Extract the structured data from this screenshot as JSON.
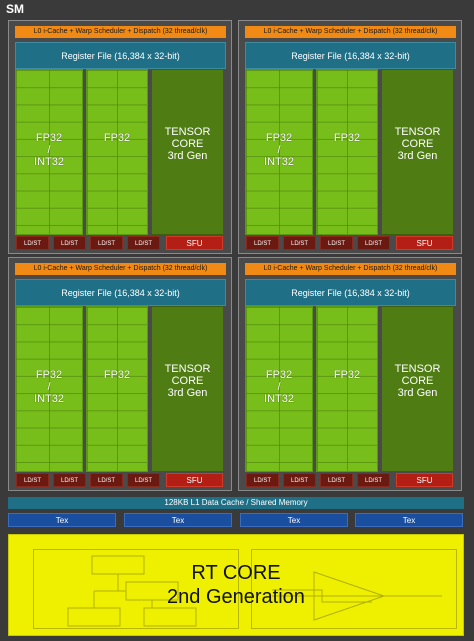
{
  "sm_label": "SM",
  "processing_blocks": [
    {
      "header": "L0 i-Cache + Warp Scheduler + Dispatch (32 thread/clk)",
      "register_file": "Register File (16,384 x 32-bit)",
      "fp32_int32": [
        "FP32",
        "/",
        "INT32"
      ],
      "fp32": "FP32",
      "tensor": [
        "TENSOR",
        "CORE",
        "3rd Gen"
      ],
      "ldst": [
        "LD/ST",
        "LD/ST",
        "LD/ST",
        "LD/ST"
      ],
      "sfu": "SFU"
    },
    {
      "header": "L0 i-Cache + Warp Scheduler + Dispatch (32 thread/clk)",
      "register_file": "Register File (16,384 x 32-bit)",
      "fp32_int32": [
        "FP32",
        "/",
        "INT32"
      ],
      "fp32": "FP32",
      "tensor": [
        "TENSOR",
        "CORE",
        "3rd Gen"
      ],
      "ldst": [
        "LD/ST",
        "LD/ST",
        "LD/ST",
        "LD/ST"
      ],
      "sfu": "SFU"
    },
    {
      "header": "L0 i-Cache + Warp Scheduler + Dispatch (32 thread/clk)",
      "register_file": "Register File (16,384 x 32-bit)",
      "fp32_int32": [
        "FP32",
        "/",
        "INT32"
      ],
      "fp32": "FP32",
      "tensor": [
        "TENSOR",
        "CORE",
        "3rd Gen"
      ],
      "ldst": [
        "LD/ST",
        "LD/ST",
        "LD/ST",
        "LD/ST"
      ],
      "sfu": "SFU"
    },
    {
      "header": "L0 i-Cache + Warp Scheduler + Dispatch (32 thread/clk)",
      "register_file": "Register File (16,384 x 32-bit)",
      "fp32_int32": [
        "FP32",
        "/",
        "INT32"
      ],
      "fp32": "FP32",
      "tensor": [
        "TENSOR",
        "CORE",
        "3rd Gen"
      ],
      "ldst": [
        "LD/ST",
        "LD/ST",
        "LD/ST",
        "LD/ST"
      ],
      "sfu": "SFU"
    }
  ],
  "l1_cache": "128KB L1 Data Cache / Shared Memory",
  "tex_units": [
    "Tex",
    "Tex",
    "Tex",
    "Tex"
  ],
  "rt_core": {
    "line1": "RT CORE",
    "line2": "2nd Generation"
  },
  "colors": {
    "header": "#f08a14",
    "register_file": "#1f6f86",
    "fp_unit": "#78be1a",
    "tensor_core": "#4f7d14",
    "ldst": "#6b1a12",
    "sfu": "#b31f14",
    "tex": "#1a4fa0",
    "rt_core": "#eff000"
  }
}
